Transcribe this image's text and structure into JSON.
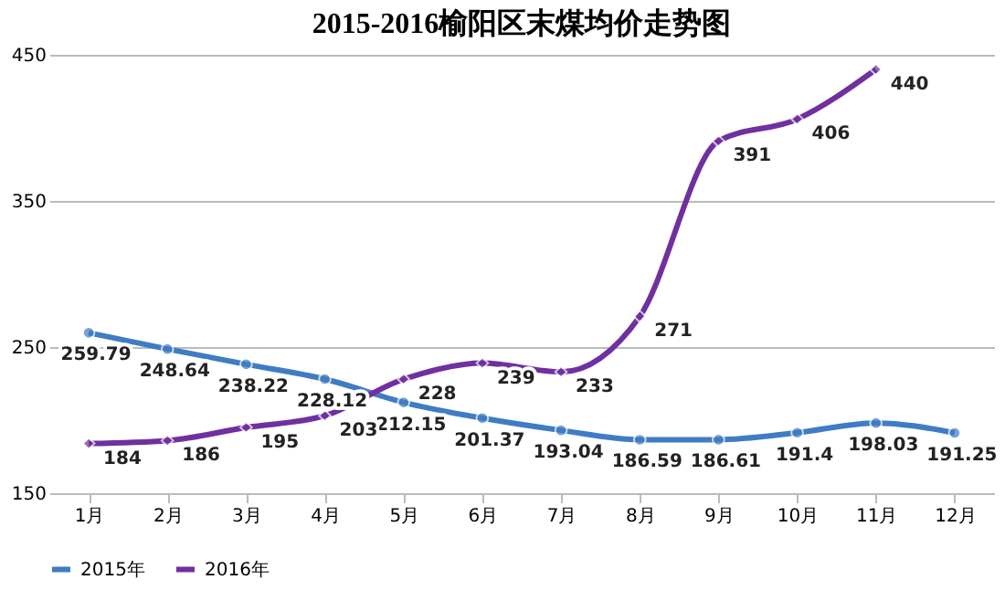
{
  "chart_data": {
    "type": "line",
    "title": "2015-2016榆阳区末煤均价走势图",
    "categories": [
      "1月",
      "2月",
      "3月",
      "4月",
      "5月",
      "6月",
      "7月",
      "8月",
      "9月",
      "10月",
      "11月",
      "12月"
    ],
    "series": [
      {
        "name": "2015年",
        "color": "#3f7cc4",
        "marker": "circle",
        "values": [
          259.79,
          248.64,
          238.22,
          228.12,
          212.15,
          201.37,
          193.04,
          186.59,
          186.61,
          191.4,
          198.03,
          191.25
        ]
      },
      {
        "name": "2016年",
        "color": "#7030a0",
        "marker": "diamond",
        "values": [
          184,
          186,
          195,
          203,
          228,
          239,
          233,
          271,
          391,
          406,
          440,
          null
        ]
      }
    ],
    "ylim": [
      150,
      450
    ],
    "yticks": [
      150,
      250,
      350,
      450
    ],
    "grid": "y",
    "legend": "bottom",
    "data_labels": true
  }
}
